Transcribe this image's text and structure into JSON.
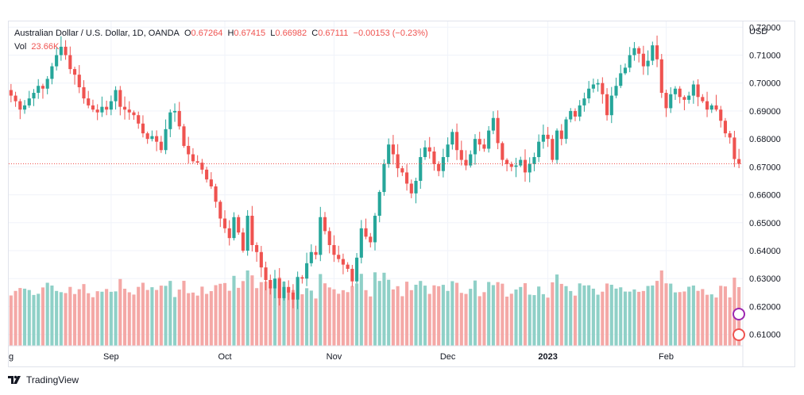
{
  "legend": {
    "title": "Australian Dollar / U.S. Dollar, 1D, OANDA",
    "open_label": "O",
    "open": "0.67264",
    "high_label": "H",
    "high": "0.67415",
    "low_label": "L",
    "low": "0.66982",
    "close_label": "C",
    "close": "0.67111",
    "change": "−0.00153 (−0.23%)",
    "vol_label": "Vol",
    "vol_value": "23.66K"
  },
  "currency": "USD",
  "brand": "TradingView",
  "colors": {
    "up": "#26a69a",
    "down": "#ef5350",
    "vol_up": "#8fd0c7",
    "vol_down": "#f4a8a6"
  },
  "chart_data": {
    "type": "candlestick",
    "symbol": "Australian Dollar / U.S. Dollar, 1D, OANDA",
    "y_axis": {
      "ticks": [
        "0.72000",
        "0.71000",
        "0.70000",
        "0.69000",
        "0.68000",
        "0.67000",
        "0.66000",
        "0.65000",
        "0.64000",
        "0.63000",
        "0.62000",
        "0.61000"
      ],
      "ylim": [
        0.6065,
        0.7215
      ]
    },
    "x_axis": {
      "ticks": [
        "g",
        "Sep",
        "Oct",
        "Nov",
        "Dec",
        "2023",
        "Feb"
      ],
      "bold_ticks": [
        "2023"
      ]
    },
    "last_price": 0.67111,
    "grid": true,
    "closes": [
      0.6955,
      0.6935,
      0.6905,
      0.692,
      0.6945,
      0.6965,
      0.699,
      0.698,
      0.7015,
      0.706,
      0.71,
      0.713,
      0.71,
      0.705,
      0.703,
      0.6985,
      0.6945,
      0.692,
      0.6905,
      0.6895,
      0.6915,
      0.6905,
      0.6935,
      0.6975,
      0.6915,
      0.6905,
      0.6895,
      0.6885,
      0.6855,
      0.682,
      0.68,
      0.681,
      0.679,
      0.676,
      0.6835,
      0.6895,
      0.69,
      0.6845,
      0.6775,
      0.6745,
      0.672,
      0.6715,
      0.669,
      0.6655,
      0.663,
      0.6575,
      0.6515,
      0.648,
      0.6445,
      0.652,
      0.6465,
      0.64,
      0.6525,
      0.642,
      0.6395,
      0.634,
      0.6295,
      0.6265,
      0.63,
      0.623,
      0.627,
      0.625,
      0.6225,
      0.6305,
      0.63,
      0.6355,
      0.6395,
      0.6385,
      0.652,
      0.647,
      0.642,
      0.6385,
      0.637,
      0.635,
      0.6335,
      0.629,
      0.6375,
      0.648,
      0.645,
      0.643,
      0.6525,
      0.661,
      0.671,
      0.678,
      0.6745,
      0.6695,
      0.668,
      0.664,
      0.6605,
      0.665,
      0.6735,
      0.677,
      0.6755,
      0.671,
      0.6685,
      0.6735,
      0.678,
      0.6825,
      0.676,
      0.6725,
      0.6705,
      0.6745,
      0.68,
      0.678,
      0.6765,
      0.683,
      0.6875,
      0.6785,
      0.6725,
      0.671,
      0.67,
      0.6705,
      0.6725,
      0.668,
      0.671,
      0.6735,
      0.679,
      0.6815,
      0.68,
      0.6725,
      0.683,
      0.68,
      0.687,
      0.69,
      0.688,
      0.692,
      0.6945,
      0.698,
      0.6995,
      0.7,
      0.696,
      0.6885,
      0.6955,
      0.699,
      0.7035,
      0.7055,
      0.71,
      0.7125,
      0.7105,
      0.706,
      0.708,
      0.7135,
      0.7085,
      0.6965,
      0.691,
      0.696,
      0.698,
      0.695,
      0.694,
      0.6955,
      0.6995,
      0.695,
      0.6935,
      0.6905,
      0.692,
      0.6905,
      0.6865,
      0.682,
      0.6805,
      0.6728,
      0.6711
    ],
    "volume_ticks_note": "volume histogram, unlabeled scale"
  }
}
